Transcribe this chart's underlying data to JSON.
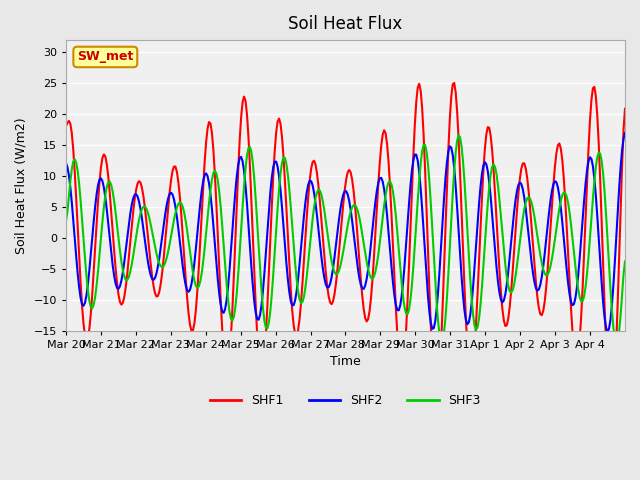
{
  "title": "Soil Heat Flux",
  "xlabel": "Time",
  "ylabel": "Soil Heat Flux (W/m2)",
  "ylim": [
    -15,
    32
  ],
  "yticks": [
    -15,
    -10,
    -5,
    0,
    5,
    10,
    15,
    20,
    25,
    30
  ],
  "xtick_labels": [
    "Mar 20",
    "Mar 21",
    "Mar 22",
    "Mar 23",
    "Mar 24",
    "Mar 25",
    "Mar 26",
    "Mar 27",
    "Mar 28",
    "Mar 29",
    "Mar 30",
    "Mar 31",
    "Apr 1",
    "Apr 2",
    "Apr 3",
    "Apr 4"
  ],
  "legend_labels": [
    "SHF1",
    "SHF2",
    "SHF3"
  ],
  "legend_colors": [
    "#ff0000",
    "#0000ff",
    "#00cc00"
  ],
  "annotation_text": "SW_met",
  "annotation_box_facecolor": "#ffff99",
  "annotation_box_edgecolor": "#cc8800",
  "annotation_text_color": "#cc0000",
  "bg_color": "#e8e8e8",
  "plot_bg_color": "#f0f0f0",
  "grid_color": "#ffffff",
  "shf1_color": "#ff0000",
  "shf2_color": "#0000ff",
  "shf3_color": "#00cc00",
  "line_width": 1.5
}
